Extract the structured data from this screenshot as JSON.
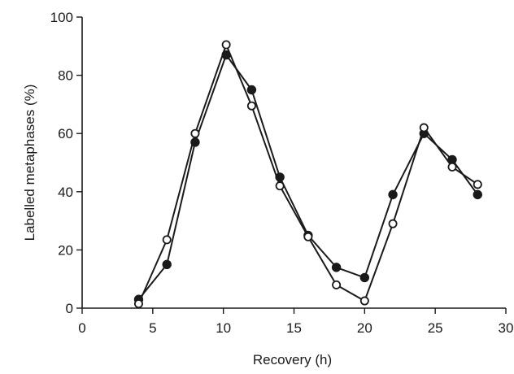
{
  "chart_data": {
    "type": "line",
    "xlabel": "Recovery (h)",
    "ylabel": "Labelled metaphases (%)",
    "xlim": [
      0,
      30
    ],
    "ylim": [
      0,
      100
    ],
    "xticks": [
      0,
      5,
      10,
      15,
      20,
      25,
      30
    ],
    "yticks": [
      0,
      20,
      40,
      60,
      80,
      100
    ],
    "grid": false,
    "legend": "none",
    "series": [
      {
        "marker": "filled-circle",
        "color": "#1a1a1a",
        "x": [
          4,
          6,
          8,
          10.2,
          12,
          14,
          16,
          18,
          20,
          22,
          24.2,
          26.2,
          28
        ],
        "y": [
          3,
          15,
          57,
          87,
          75,
          45,
          25,
          14,
          10.5,
          39,
          60,
          51,
          39
        ]
      },
      {
        "marker": "open-circle",
        "color": "#1a1a1a",
        "x": [
          4,
          6,
          8,
          10.2,
          12,
          14,
          16,
          18,
          20,
          22,
          24.2,
          26.2,
          28
        ],
        "y": [
          1.5,
          23.5,
          60,
          90.5,
          69.5,
          42,
          24.5,
          8,
          2.5,
          29,
          62,
          48.5,
          42.5
        ]
      }
    ]
  }
}
